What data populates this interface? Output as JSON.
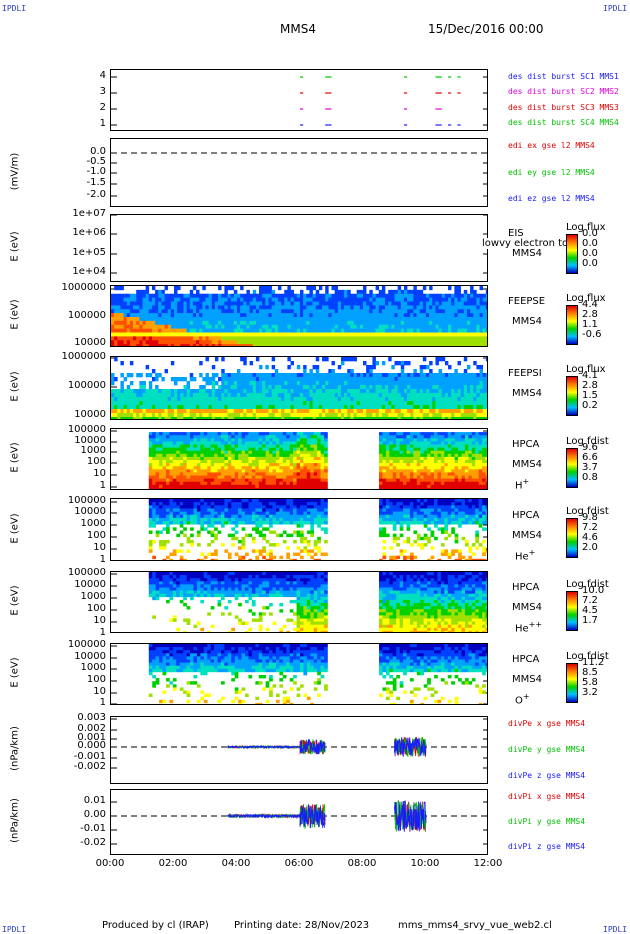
{
  "header": {
    "corner_label": "IPDLI",
    "spacecraft": "MMS4",
    "date": "15/Dec/2016 00:00"
  },
  "footer": {
    "produced_by": "Produced by cl (IRAP)",
    "printing_date": "Printing date: 28/Nov/2023",
    "filename": "mms_mms4_srvy_vue_web2.cl"
  },
  "x_axis": {
    "ticks": [
      "00:00",
      "02:00",
      "04:00",
      "06:00",
      "08:00",
      "10:00",
      "12:00"
    ]
  },
  "colors": {
    "blue": "#1a1aff",
    "magenta": "#e000e0",
    "red": "#e00000",
    "green": "#00c000"
  },
  "chart_data": [
    {
      "type": "scatter",
      "id": "burst",
      "yticks": [
        "4",
        "3",
        "2",
        "1"
      ],
      "legend": [
        {
          "label": "des dist burst SC1 MMS1",
          "color": "#1a1aff"
        },
        {
          "label": "des dist burst SC2 MMS2",
          "color": "#e000e0"
        },
        {
          "label": "des dist burst SC3 MMS3",
          "color": "#e00000"
        },
        {
          "label": "des dist burst SC4 MMS4",
          "color": "#00c000"
        }
      ]
    },
    {
      "type": "line",
      "id": "edi",
      "ylabel": "(mV/m)",
      "yticks": [
        "0.0",
        "-0.5",
        "-1.0",
        "-1.5",
        "-2.0"
      ],
      "legend": [
        {
          "label": "edi ex gse l2 MMS4",
          "color": "#e00000"
        },
        {
          "label": "edi ey gse l2 MMS4",
          "color": "#00c000"
        },
        {
          "label": "edi ez gse l2 MMS4",
          "color": "#1a1aff"
        }
      ]
    },
    {
      "type": "heatmap",
      "id": "eis",
      "ylabel": "E (eV)",
      "yticks": [
        "1e+07",
        "1e+06",
        "1e+05",
        "1e+04"
      ],
      "instrument": "EIS",
      "sc": "MMS4",
      "overlay": "lowvy electron to",
      "cb_title": "Log flux",
      "cb_values": [
        "0.0",
        "0.0",
        "0.0",
        "0.0"
      ]
    },
    {
      "type": "heatmap",
      "id": "feepse",
      "ylabel": "E (eV)",
      "yticks": [
        "1000000",
        "100000",
        "10000"
      ],
      "instrument": "FEEPSE",
      "sc": "MMS4",
      "cb_title": "Log flux",
      "cb_values": [
        "4.4",
        "2.8",
        "1.1",
        "-0.6"
      ]
    },
    {
      "type": "heatmap",
      "id": "feepsi",
      "ylabel": "E (eV)",
      "yticks": [
        "1000000",
        "100000",
        "10000"
      ],
      "instrument": "FEEPSI",
      "sc": "MMS4",
      "cb_title": "Log flux",
      "cb_values": [
        "4.1",
        "2.8",
        "1.5",
        "0.2"
      ]
    },
    {
      "type": "heatmap",
      "id": "hpca_h",
      "ylabel": "E (eV)",
      "yticks": [
        "100000",
        "10000",
        "1000",
        "100",
        "10",
        "1"
      ],
      "instrument": "HPCA",
      "sc": "MMS4",
      "species": "H",
      "charge": "+",
      "cb_title": "Log fdist",
      "cb_values": [
        "9.6",
        "6.6",
        "3.7",
        "0.8"
      ]
    },
    {
      "type": "heatmap",
      "id": "hpca_he",
      "ylabel": "E (eV)",
      "yticks": [
        "100000",
        "10000",
        "1000",
        "100",
        "10",
        "1"
      ],
      "instrument": "HPCA",
      "sc": "MMS4",
      "species": "He",
      "charge": "+",
      "cb_title": "Log fdist",
      "cb_values": [
        "9.8",
        "7.2",
        "4.6",
        "2.0"
      ]
    },
    {
      "type": "heatmap",
      "id": "hpca_hepp",
      "ylabel": "E (eV)",
      "yticks": [
        "100000",
        "10000",
        "1000",
        "100",
        "10",
        "1"
      ],
      "instrument": "HPCA",
      "sc": "MMS4",
      "species": "He",
      "charge": "++",
      "cb_title": "Log fdist",
      "cb_values": [
        "10.0",
        "7.2",
        "4.5",
        "1.7"
      ]
    },
    {
      "type": "heatmap",
      "id": "hpca_o",
      "ylabel": "E (eV)",
      "yticks": [
        "100000",
        "10000",
        "1000",
        "100",
        "10",
        "1"
      ],
      "instrument": "HPCA",
      "sc": "MMS4",
      "species": "O",
      "charge": "+",
      "cb_title": "Log fdist",
      "cb_values": [
        "11.2",
        "8.5",
        "5.8",
        "3.2"
      ]
    },
    {
      "type": "line",
      "id": "divpe",
      "ylabel": "(nPa/km)",
      "yticks": [
        "0.003",
        "0.002",
        "0.001",
        "0.000",
        "-0.001",
        "-0.002"
      ],
      "legend": [
        {
          "label": "divPe x gse MMS4",
          "color": "#e00000"
        },
        {
          "label": "divPe y gse MMS4",
          "color": "#00c000"
        },
        {
          "label": "divPe z gse MMS4",
          "color": "#1a1aff"
        }
      ]
    },
    {
      "type": "line",
      "id": "divpi",
      "ylabel": "(nPa/km)",
      "yticks": [
        "0.01",
        "0.00",
        "-0.01",
        "-0.02"
      ],
      "legend": [
        {
          "label": "divPi x gse MMS4",
          "color": "#e00000"
        },
        {
          "label": "divPi y gse MMS4",
          "color": "#00c000"
        },
        {
          "label": "divPi z gse MMS4",
          "color": "#1a1aff"
        }
      ]
    }
  ]
}
